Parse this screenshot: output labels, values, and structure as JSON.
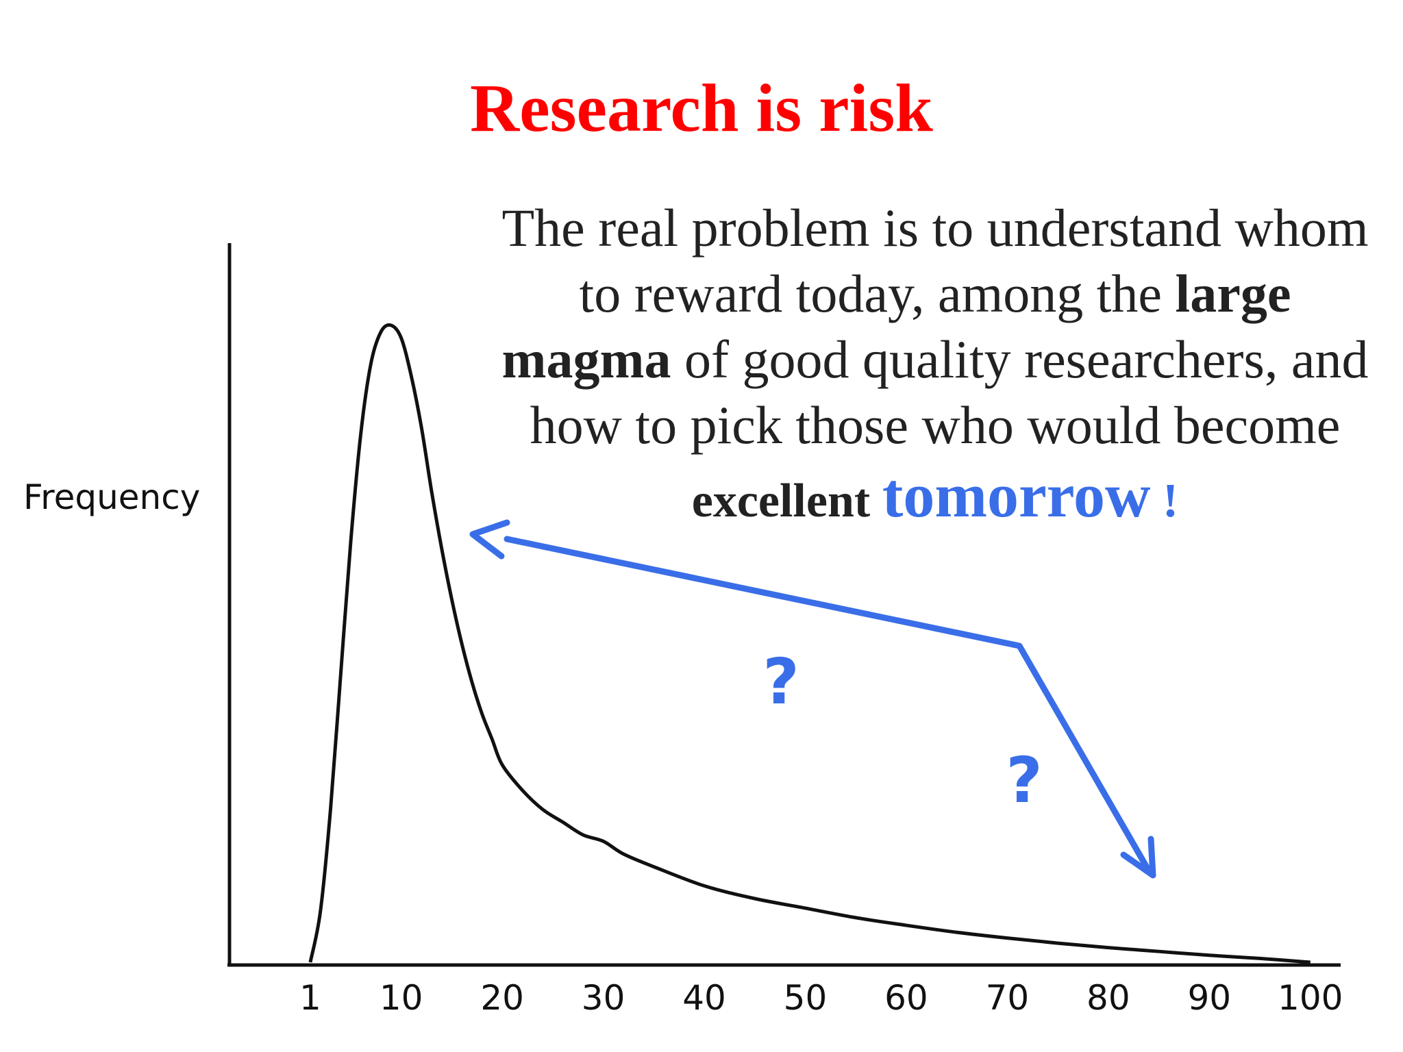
{
  "title": "Research is risk",
  "message": {
    "line1": "The real problem is to understand whom",
    "line2_pre": "to reward today, among the ",
    "line2_bold": "large",
    "line3_bold": "magma",
    "line3_rest": " of good quality researchers, and",
    "line4": "how to pick those who would become",
    "line5_bold": "excellent ",
    "line5_emph": "tomorrow",
    "line5_end": " !"
  },
  "colors": {
    "title": "#ff0000",
    "text": "#222222",
    "accent": "#3a6ee8",
    "curve": "#111111"
  },
  "chart_data": {
    "type": "line",
    "title": "",
    "xlabel": "",
    "ylabel": "Frequency",
    "x_tick_labels": [
      "1",
      "10",
      "20",
      "30",
      "40",
      "50",
      "60",
      "70",
      "80",
      "90",
      "100"
    ],
    "x_tick_values": [
      1,
      10,
      20,
      30,
      40,
      50,
      60,
      70,
      80,
      90,
      100
    ],
    "xlim": [
      -7,
      103
    ],
    "ylim": [
      0,
      1
    ],
    "y_ticks_shown": false,
    "grid": false,
    "series": [
      {
        "x": [
          1,
          2,
          3,
          4,
          5,
          6,
          7,
          8,
          9,
          10,
          11,
          12,
          13,
          14,
          15,
          16,
          17,
          18,
          19,
          20,
          22,
          24,
          26,
          28,
          30,
          32,
          35,
          40,
          45,
          50,
          55,
          60,
          65,
          70,
          75,
          80,
          85,
          90,
          95,
          100
        ],
        "y": [
          0.0,
          0.08,
          0.24,
          0.45,
          0.66,
          0.83,
          0.94,
          0.99,
          1.0,
          0.98,
          0.92,
          0.84,
          0.74,
          0.65,
          0.57,
          0.5,
          0.44,
          0.39,
          0.35,
          0.31,
          0.27,
          0.24,
          0.22,
          0.2,
          0.19,
          0.17,
          0.15,
          0.12,
          0.1,
          0.085,
          0.07,
          0.058,
          0.047,
          0.038,
          0.03,
          0.023,
          0.017,
          0.011,
          0.006,
          0.0
        ]
      }
    ],
    "annotations": {
      "question_marks": [
        "?",
        "?"
      ],
      "arrow": "blue bent arrow linking the tail region back to the peak region and down toward x≈85"
    }
  }
}
